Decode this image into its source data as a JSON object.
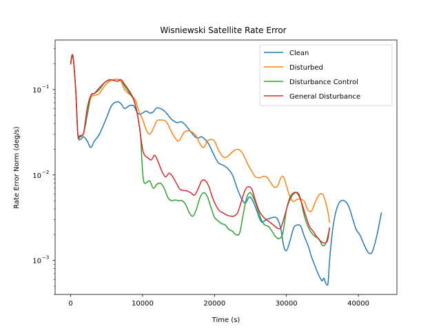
{
  "chart_data": {
    "type": "line",
    "title": "Wisniewski Satellite Rate Error",
    "xlabel": "Time (s)",
    "ylabel": "Rate Error Norm (deg/s)",
    "xlim": [
      -2160,
      45360
    ],
    "ylim": [
      0.0004,
      0.38
    ],
    "yscale": "log",
    "xticks": [
      0,
      10000,
      20000,
      30000,
      40000
    ],
    "xtick_labels": [
      "0",
      "10000",
      "20000",
      "30000",
      "40000"
    ],
    "yticks": [
      0.001,
      0.01,
      0.1
    ],
    "ytick_labels": [
      "10",
      "10",
      "10"
    ],
    "ytick_exponents": [
      "−3",
      "−2",
      "−1"
    ],
    "grid": false,
    "legend_position": "upper right",
    "series": [
      {
        "name": "Clean",
        "color": "#1f77b4",
        "x": [
          0,
          300,
          700,
          1000,
          1300,
          1800,
          2300,
          2800,
          3300,
          4000,
          5000,
          5700,
          6500,
          7000,
          7500,
          8200,
          8800,
          9300,
          9800,
          10500,
          11000,
          11500,
          12000,
          12800,
          13400,
          14000,
          14800,
          15400,
          16000,
          16700,
          17300,
          17700,
          18200,
          18700,
          19200,
          19800,
          20500,
          21200,
          21800,
          22500,
          23200,
          23800,
          24300,
          24800,
          25200,
          25700,
          26200,
          26600,
          27200,
          27700,
          28200,
          28700,
          29200,
          29600,
          30000,
          30500,
          31000,
          31500,
          32000,
          32500,
          33000,
          33500,
          34000,
          34400,
          34800,
          35000,
          35200,
          35400,
          35600,
          35800,
          36000,
          36400,
          36800,
          37200,
          37600,
          38000,
          38400,
          38800,
          39200,
          39700,
          40200,
          40700,
          41200,
          41600,
          42000,
          42600,
          43200
        ],
        "y": [
          0.2,
          0.25,
          0.1,
          0.03,
          0.026,
          0.028,
          0.025,
          0.021,
          0.025,
          0.03,
          0.047,
          0.065,
          0.072,
          0.068,
          0.06,
          0.065,
          0.064,
          0.053,
          0.052,
          0.056,
          0.053,
          0.055,
          0.061,
          0.058,
          0.052,
          0.045,
          0.041,
          0.042,
          0.038,
          0.032,
          0.028,
          0.027,
          0.028,
          0.026,
          0.023,
          0.018,
          0.014,
          0.013,
          0.012,
          0.01,
          0.0068,
          0.0052,
          0.0047,
          0.0055,
          0.0052,
          0.0042,
          0.0032,
          0.0028,
          0.003,
          0.0031,
          0.0032,
          0.0031,
          0.0024,
          0.0015,
          0.0013,
          0.0017,
          0.0024,
          0.0026,
          0.0025,
          0.0019,
          0.0015,
          0.0011,
          0.00085,
          0.0007,
          0.0006,
          0.00058,
          0.00062,
          0.00056,
          0.00052,
          0.00055,
          0.001,
          0.0022,
          0.0035,
          0.0045,
          0.005,
          0.005,
          0.0047,
          0.004,
          0.0031,
          0.0023,
          0.002,
          0.0016,
          0.0013,
          0.0012,
          0.0013,
          0.002,
          0.0036
        ]
      },
      {
        "name": "Disturbed",
        "color": "#ff7f0e",
        "x": [
          0,
          300,
          700,
          1000,
          1300,
          1800,
          2300,
          2800,
          3300,
          4000,
          4700,
          5400,
          6000,
          6500,
          7000,
          7500,
          8200,
          9000,
          9500,
          10000,
          10500,
          11000,
          11500,
          12000,
          12700,
          13300,
          13800,
          14300,
          15000,
          15700,
          16200,
          16800,
          17400,
          18000,
          18500,
          19000,
          19500,
          20000,
          20500,
          21000,
          21500,
          22000,
          22600,
          23200,
          23700,
          24200,
          24700,
          25200,
          25700,
          26300,
          26800,
          27300,
          27800,
          28300,
          28800,
          29200,
          29600,
          30000,
          30500,
          31000,
          31500,
          32000,
          32500,
          33000,
          33500,
          34000,
          34500,
          35000,
          35400,
          35800,
          36000
        ],
        "y": [
          0.2,
          0.25,
          0.1,
          0.03,
          0.029,
          0.031,
          0.05,
          0.08,
          0.085,
          0.09,
          0.11,
          0.125,
          0.13,
          0.132,
          0.125,
          0.1,
          0.088,
          0.075,
          0.055,
          0.045,
          0.034,
          0.03,
          0.035,
          0.043,
          0.044,
          0.042,
          0.035,
          0.029,
          0.025,
          0.031,
          0.033,
          0.032,
          0.029,
          0.023,
          0.021,
          0.025,
          0.026,
          0.025,
          0.02,
          0.017,
          0.016,
          0.017,
          0.019,
          0.02,
          0.019,
          0.016,
          0.013,
          0.011,
          0.0095,
          0.0093,
          0.0096,
          0.0094,
          0.0082,
          0.0072,
          0.0075,
          0.0092,
          0.0095,
          0.0075,
          0.0055,
          0.0049,
          0.0052,
          0.0052,
          0.0049,
          0.0039,
          0.0038,
          0.0048,
          0.0058,
          0.006,
          0.005,
          0.0036,
          0.0028
        ]
      },
      {
        "name": "Disturbance Control",
        "color": "#2ca02c",
        "x": [
          0,
          300,
          700,
          1000,
          1300,
          1800,
          2300,
          2800,
          3300,
          4000,
          4700,
          5400,
          6000,
          6500,
          7000,
          7500,
          8200,
          8800,
          9300,
          9700,
          9900,
          10100,
          10300,
          10600,
          11000,
          11500,
          12000,
          12500,
          13000,
          13500,
          14000,
          14500,
          15000,
          15500,
          16000,
          16500,
          17000,
          17500,
          18000,
          18500,
          19000,
          19500,
          20000,
          20500,
          21000,
          21500,
          22000,
          22500,
          23000,
          23500,
          24000,
          24500,
          25000,
          25500,
          26000,
          26500,
          27000,
          27500,
          28000,
          28500,
          29000,
          29500,
          30000,
          30500,
          31000,
          31500,
          32000,
          32500,
          33000,
          33500,
          34000,
          34500,
          35000,
          35500,
          36000
        ],
        "y": [
          0.2,
          0.25,
          0.1,
          0.03,
          0.028,
          0.031,
          0.05,
          0.085,
          0.09,
          0.1,
          0.12,
          0.13,
          0.128,
          0.125,
          0.13,
          0.11,
          0.09,
          0.075,
          0.05,
          0.03,
          0.015,
          0.009,
          0.008,
          0.0082,
          0.0085,
          0.007,
          0.0078,
          0.008,
          0.007,
          0.0055,
          0.005,
          0.0051,
          0.005,
          0.005,
          0.0045,
          0.0036,
          0.0033,
          0.004,
          0.0055,
          0.0062,
          0.0056,
          0.0042,
          0.0032,
          0.0029,
          0.0027,
          0.0026,
          0.0023,
          0.0022,
          0.002,
          0.0021,
          0.0035,
          0.0055,
          0.0062,
          0.0052,
          0.004,
          0.003,
          0.0026,
          0.0025,
          0.0022,
          0.0019,
          0.0018,
          0.0021,
          0.0039,
          0.0055,
          0.0062,
          0.0061,
          0.005,
          0.0033,
          0.0025,
          0.0021,
          0.0019,
          0.0018,
          0.0015,
          0.0016,
          0.0024
        ]
      },
      {
        "name": "General Disturbance",
        "color": "#d62728",
        "x": [
          0,
          300,
          700,
          1000,
          1300,
          1800,
          2300,
          2800,
          3300,
          4000,
          4700,
          5400,
          6000,
          6500,
          7000,
          7500,
          8200,
          8800,
          9300,
          9700,
          10000,
          10300,
          10700,
          11200,
          11700,
          12200,
          12700,
          13200,
          13700,
          14200,
          14700,
          15200,
          15700,
          16200,
          16700,
          17200,
          17700,
          18200,
          18700,
          19200,
          19700,
          20200,
          20700,
          21200,
          21700,
          22200,
          22700,
          23200,
          23700,
          24200,
          24700,
          25200,
          25700,
          26200,
          26700,
          27200,
          27700,
          28200,
          28700,
          29200,
          29700,
          30200,
          30700,
          31200,
          31700,
          32200,
          32700,
          33200,
          33700,
          34200,
          34700,
          35200,
          35700,
          36000
        ],
        "y": [
          0.2,
          0.25,
          0.1,
          0.03,
          0.029,
          0.031,
          0.06,
          0.085,
          0.09,
          0.105,
          0.12,
          0.13,
          0.128,
          0.125,
          0.13,
          0.115,
          0.095,
          0.075,
          0.05,
          0.03,
          0.02,
          0.017,
          0.016,
          0.015,
          0.017,
          0.014,
          0.011,
          0.0095,
          0.0105,
          0.0095,
          0.008,
          0.0068,
          0.0066,
          0.0065,
          0.0062,
          0.0058,
          0.0068,
          0.0085,
          0.0086,
          0.0074,
          0.0055,
          0.0044,
          0.0038,
          0.0036,
          0.0034,
          0.0033,
          0.0033,
          0.0036,
          0.0048,
          0.0065,
          0.0073,
          0.0068,
          0.005,
          0.0038,
          0.0033,
          0.003,
          0.0028,
          0.0026,
          0.0024,
          0.0024,
          0.0032,
          0.0045,
          0.0056,
          0.0062,
          0.006,
          0.0045,
          0.0033,
          0.0025,
          0.0022,
          0.0019,
          0.0017,
          0.0016,
          0.0017,
          0.0024
        ]
      }
    ]
  }
}
